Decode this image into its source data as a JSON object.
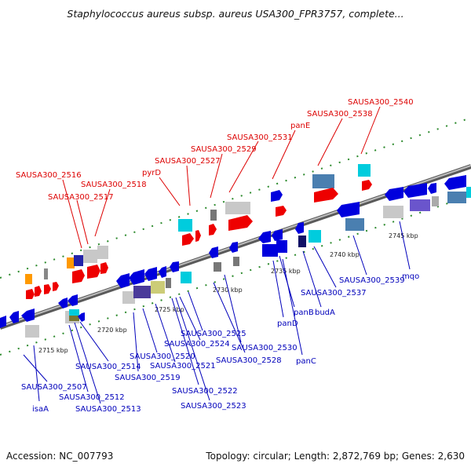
{
  "title": "Staphylococcus aureus subsp. aureus USA300_FPR3757, complete...",
  "footer": {
    "accession": "Accession: NC_007793",
    "summary": "Topology: circular; Length: 2,872,769 bp; Genes: 2,630"
  },
  "colors": {
    "forward_label": "#dd0000",
    "reverse_label": "#0000bb",
    "backbone": "#888888"
  },
  "kbp_ticks": [
    "2715 kbp",
    "2720 kbp",
    "2725 kbp",
    "2730 kbp",
    "2735 kbp",
    "2740 kbp",
    "2745 kbp"
  ],
  "forward_labels": [
    "SAUSA300_2516",
    "SAUSA300_2517",
    "SAUSA300_2518",
    "pyrD",
    "SAUSA300_2527",
    "SAUSA300_2529",
    "SAUSA300_2531",
    "panE",
    "SAUSA300_2538",
    "SAUSA300_2540"
  ],
  "reverse_labels": [
    "SAUSA300_2507",
    "isaA",
    "SAUSA300_2512",
    "SAUSA300_2513",
    "SAUSA300_2514",
    "SAUSA300_2519",
    "SAUSA300_2520",
    "SAUSA300_2521",
    "SAUSA300_2522",
    "SAUSA300_2523",
    "SAUSA300_2524",
    "SAUSA300_2525",
    "SAUSA300_2528",
    "SAUSA300_2530",
    "panD",
    "panB",
    "panC",
    "budA",
    "SAUSA300_2537",
    "SAUSA300_2539",
    "mqo"
  ]
}
